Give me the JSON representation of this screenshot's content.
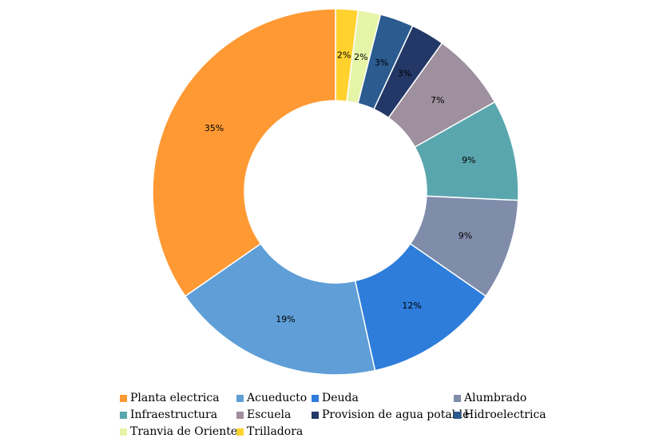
{
  "chart_data": {
    "type": "pie",
    "title": "",
    "donut": true,
    "legend_position": "bottom",
    "slices": [
      {
        "name": "Planta electrica",
        "value": 35,
        "label": "35%",
        "color": "#FF9933"
      },
      {
        "name": "Acueducto",
        "value": 19,
        "label": "19%",
        "color": "#5F9ED6"
      },
      {
        "name": "Deuda",
        "value": 12,
        "label": "12%",
        "color": "#2E7DDB"
      },
      {
        "name": "Alumbrado",
        "value": 9,
        "label": "9%",
        "color": "#7F8CAA"
      },
      {
        "name": "Infraestructura",
        "value": 9,
        "label": "9%",
        "color": "#5AA6AE"
      },
      {
        "name": "Escuela",
        "value": 7,
        "label": "7%",
        "color": "#9E909E"
      },
      {
        "name": "Provision de agua potable",
        "value": 3,
        "label": "3%",
        "color": "#233866"
      },
      {
        "name": "Hidroelectrica",
        "value": 3,
        "label": "3%",
        "color": "#2B5B8F"
      },
      {
        "name": "Tranvia de Oriente",
        "value": 2,
        "label": "2%",
        "color": "#E6F4A8"
      },
      {
        "name": "Trilladora",
        "value": 2,
        "label": "2%",
        "color": "#FFD22E"
      }
    ],
    "draw_order": [
      "Trilladora",
      "Tranvia de Oriente",
      "Hidroelectrica",
      "Provision de agua potable",
      "Escuela",
      "Infraestructura",
      "Alumbrado",
      "Deuda",
      "Acueducto",
      "Planta electrica"
    ]
  }
}
